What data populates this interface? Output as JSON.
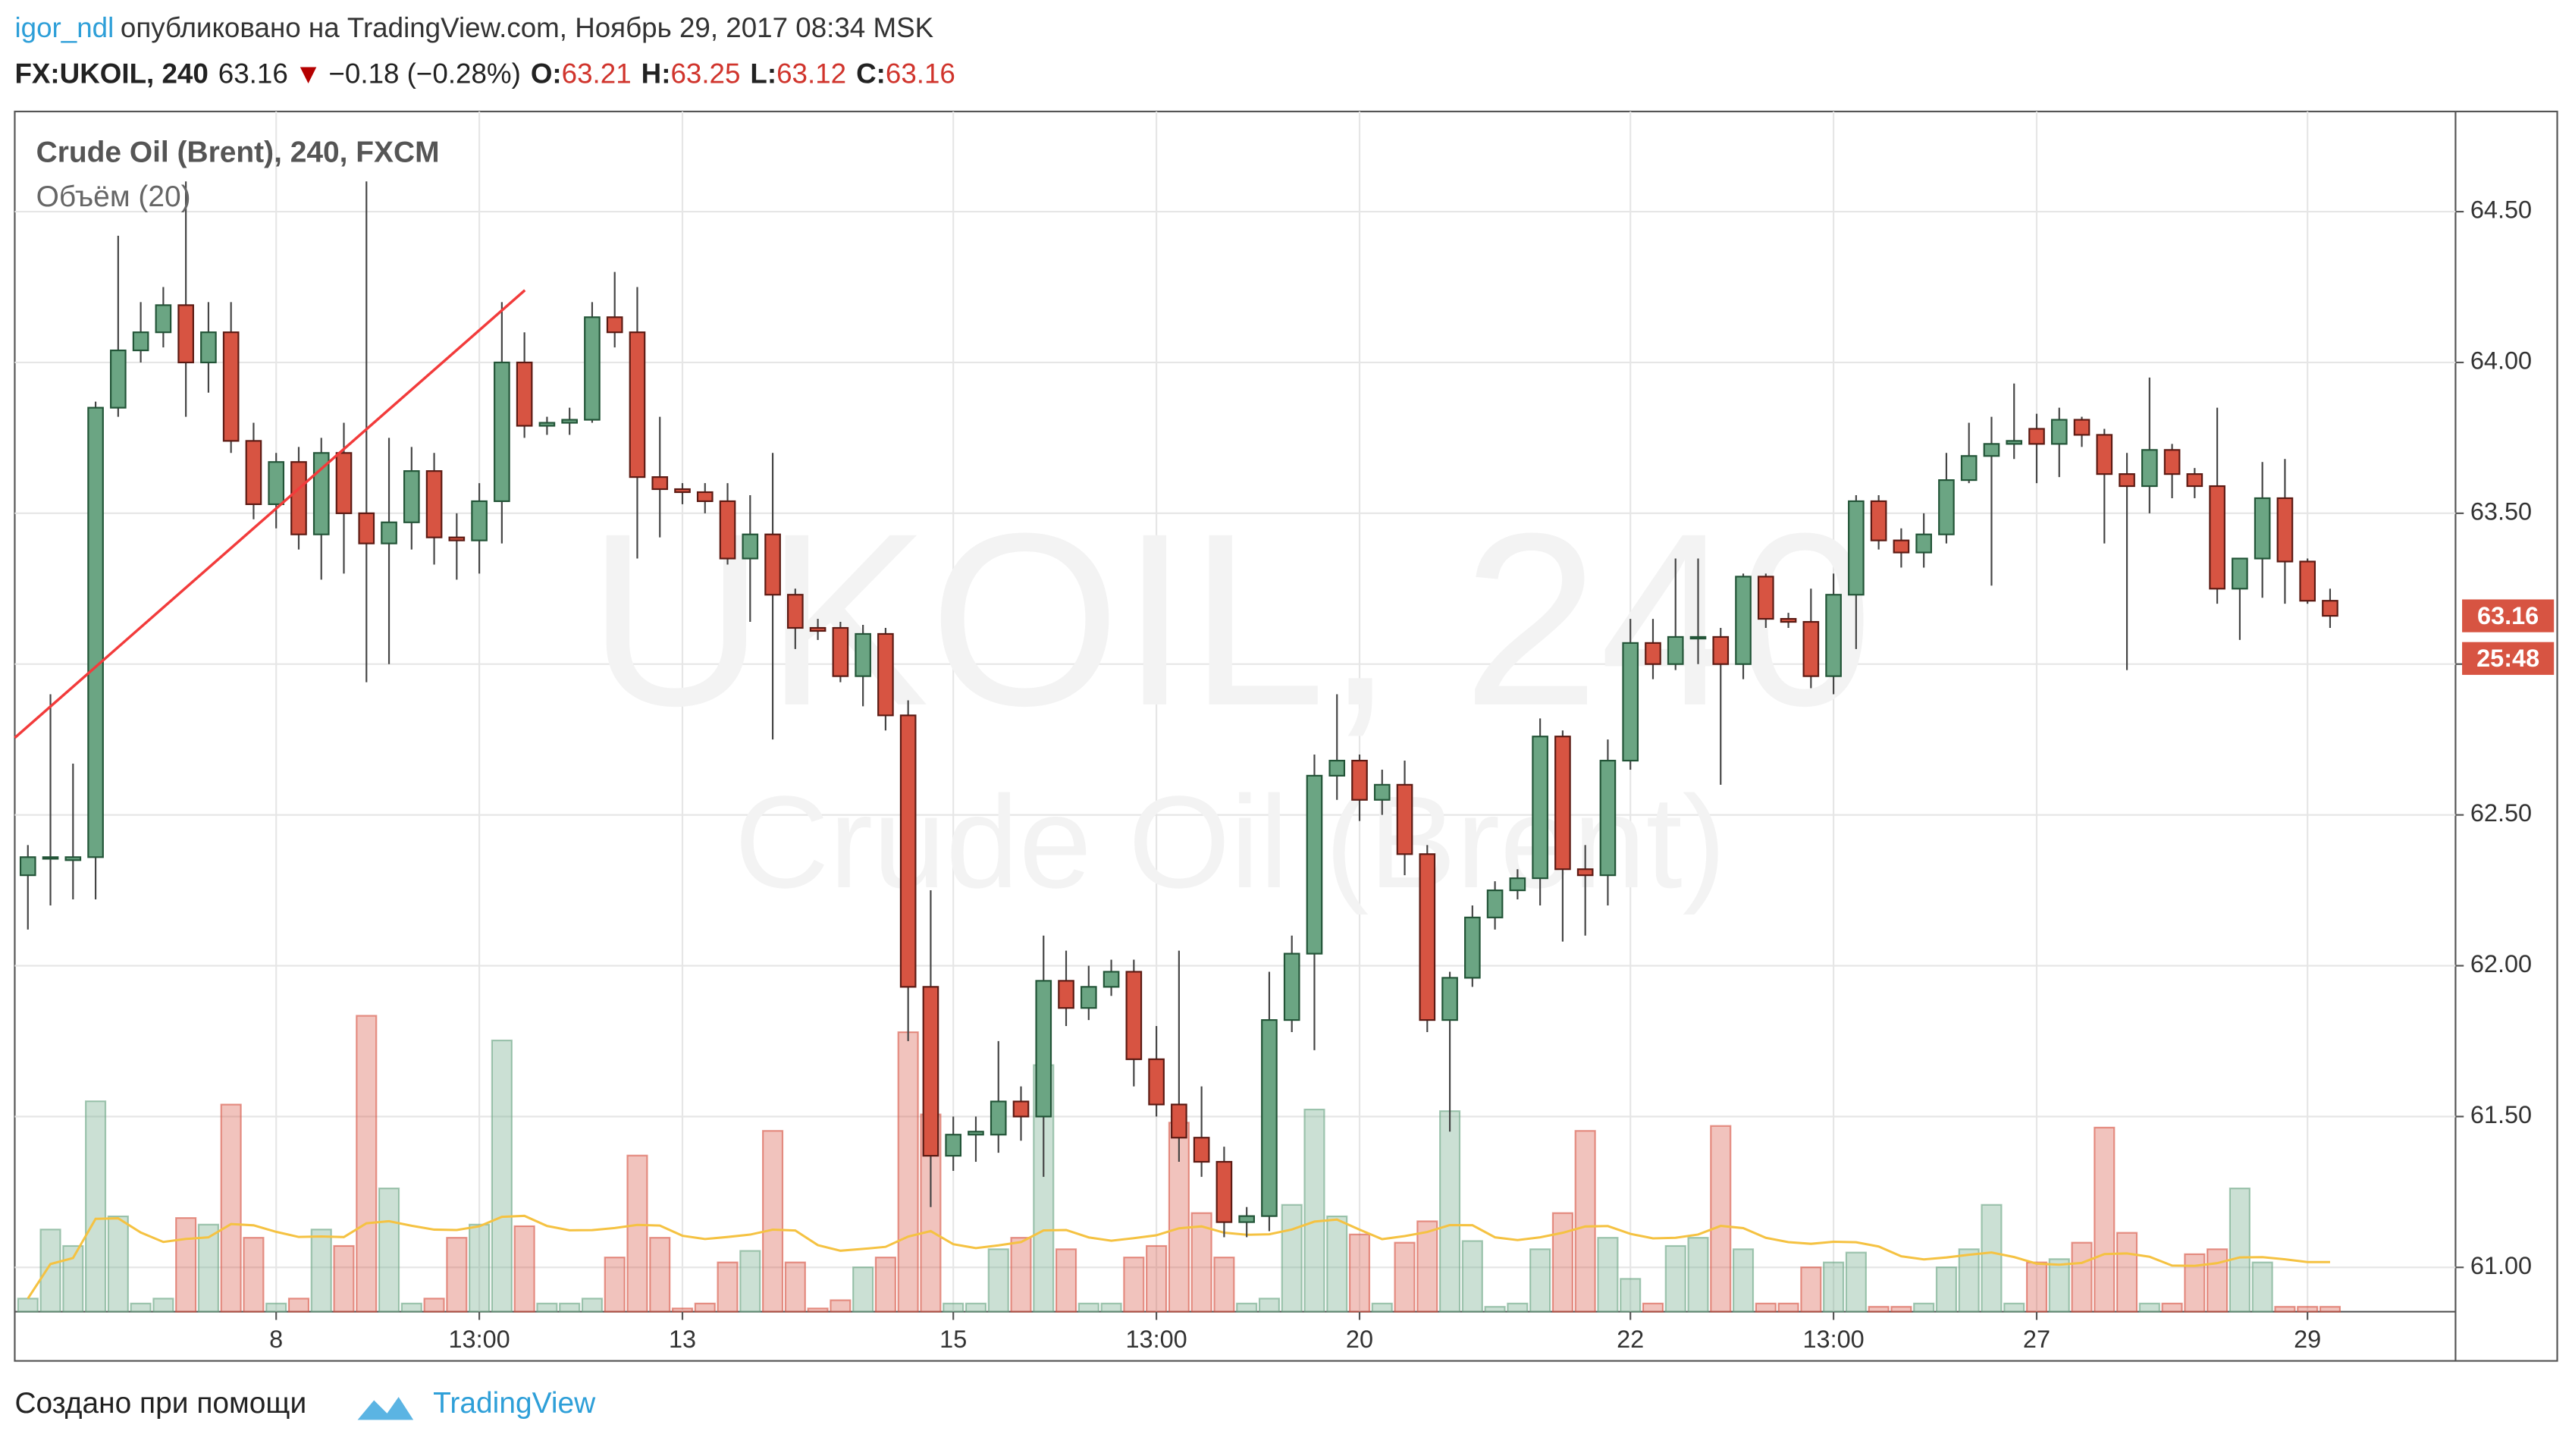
{
  "header": {
    "user": "igor_ndl",
    "published": "опубликовано на TradingView.com, Ноябрь 29, 2017 08:34 MSK",
    "symbol": "FX:UKOIL, 240",
    "last": "63.16",
    "arrow": "▼",
    "change": "−0.18 (−0.28%)",
    "ohlc": [
      {
        "label": "O:",
        "value": "63.21"
      },
      {
        "label": "H:",
        "value": "63.25"
      },
      {
        "label": "L:",
        "value": "63.12"
      },
      {
        "label": "C:",
        "value": "63.16"
      }
    ]
  },
  "footer": {
    "text": "Создано при помощи",
    "brand": "TradingView"
  },
  "chart_data": {
    "type": "candlestick",
    "title": "Crude Oil (Brent), 240, FXCM",
    "subtitle": "Объём (20)",
    "watermark": [
      "UKOIL, 240",
      "Crude Oil (Brent)"
    ],
    "price_label": "63.16",
    "countdown": "25:48",
    "up_color": "#6ba583",
    "down_color": "#d75442",
    "categories": [
      null,
      null,
      null,
      null,
      null,
      null,
      null,
      null,
      null,
      null,
      null,
      "8",
      null,
      null,
      null,
      null,
      null,
      null,
      null,
      null,
      "13:00",
      null,
      null,
      null,
      null,
      null,
      null,
      null,
      null,
      "13",
      null,
      null,
      null,
      null,
      null,
      null,
      null,
      null,
      null,
      null,
      null,
      "15",
      null,
      null,
      null,
      null,
      null,
      null,
      null,
      null,
      "13:00",
      null,
      null,
      null,
      null,
      null,
      null,
      null,
      null,
      "20",
      null,
      null,
      null,
      null,
      null,
      null,
      null,
      null,
      null,
      null,
      null,
      "22",
      null,
      null,
      null,
      null,
      null,
      null,
      null,
      null,
      "13:00",
      null,
      null,
      null,
      null,
      null,
      null,
      null,
      null,
      "27",
      null,
      null,
      null,
      null,
      null,
      null,
      null,
      null,
      null,
      null,
      null,
      "29",
      null
    ],
    "open": [
      62.3,
      62.36,
      62.35,
      62.36,
      63.85,
      64.04,
      64.1,
      64.19,
      64.0,
      64.1,
      63.74,
      63.53,
      63.67,
      63.43,
      63.7,
      63.5,
      63.4,
      63.47,
      63.64,
      63.42,
      63.41,
      63.54,
      64.0,
      63.79,
      63.8,
      63.81,
      64.15,
      64.1,
      63.62,
      63.58,
      63.57,
      63.54,
      63.35,
      63.43,
      63.23,
      63.12,
      63.12,
      62.96,
      63.1,
      62.83,
      61.93,
      61.37,
      61.44,
      61.44,
      61.55,
      61.5,
      61.95,
      61.86,
      61.93,
      61.98,
      61.69,
      61.54,
      61.43,
      61.35,
      61.15,
      61.17,
      61.82,
      62.04,
      62.63,
      62.68,
      62.55,
      62.6,
      62.37,
      61.82,
      61.96,
      62.16,
      62.25,
      62.29,
      62.76,
      62.32,
      62.3,
      62.68,
      63.07,
      63.0,
      63.09,
      63.09,
      63.0,
      63.29,
      63.15,
      63.14,
      62.96,
      63.23,
      63.54,
      63.41,
      63.37,
      63.43,
      63.61,
      63.69,
      63.73,
      63.78,
      63.73,
      63.81,
      63.76,
      63.63,
      63.59,
      63.71,
      63.63,
      63.59,
      63.25,
      63.35,
      63.55,
      63.34,
      63.21
    ],
    "high": [
      62.4,
      62.9,
      62.67,
      63.87,
      64.42,
      64.2,
      64.25,
      64.6,
      64.2,
      64.2,
      63.8,
      63.7,
      63.72,
      63.75,
      63.8,
      64.6,
      63.75,
      63.72,
      63.7,
      63.5,
      63.6,
      64.2,
      64.1,
      63.82,
      63.85,
      64.2,
      64.3,
      64.25,
      63.82,
      63.6,
      63.6,
      63.6,
      63.56,
      63.7,
      63.25,
      63.15,
      63.14,
      63.13,
      63.12,
      62.88,
      62.25,
      61.5,
      61.5,
      61.75,
      61.6,
      62.1,
      62.05,
      62.0,
      62.02,
      62.02,
      61.8,
      62.05,
      61.6,
      61.4,
      61.2,
      61.98,
      62.1,
      62.7,
      62.9,
      62.7,
      62.65,
      62.68,
      62.4,
      61.98,
      62.2,
      62.28,
      62.32,
      62.82,
      62.78,
      62.4,
      62.75,
      63.15,
      63.15,
      63.35,
      63.35,
      63.12,
      63.3,
      63.3,
      63.17,
      63.25,
      63.3,
      63.56,
      63.56,
      63.45,
      63.5,
      63.7,
      63.8,
      63.82,
      63.93,
      63.83,
      63.85,
      63.82,
      63.78,
      63.7,
      63.95,
      63.73,
      63.65,
      63.85,
      63.35,
      63.67,
      63.68,
      63.35,
      63.25
    ],
    "low": [
      62.12,
      62.2,
      62.22,
      62.22,
      63.82,
      64.0,
      64.05,
      63.82,
      63.9,
      63.7,
      63.48,
      63.45,
      63.38,
      63.28,
      63.3,
      62.94,
      63.0,
      63.38,
      63.33,
      63.28,
      63.3,
      63.4,
      63.75,
      63.76,
      63.76,
      63.8,
      64.05,
      63.35,
      63.42,
      63.53,
      63.5,
      63.33,
      63.14,
      62.75,
      63.05,
      63.08,
      62.94,
      62.86,
      62.78,
      61.75,
      61.2,
      61.32,
      61.35,
      61.38,
      61.42,
      61.3,
      61.8,
      61.82,
      61.9,
      61.6,
      61.5,
      61.35,
      61.3,
      61.1,
      61.1,
      61.12,
      61.78,
      61.72,
      62.55,
      62.48,
      62.5,
      62.3,
      61.78,
      61.45,
      61.93,
      62.12,
      62.22,
      62.2,
      62.08,
      62.1,
      62.2,
      62.65,
      62.95,
      62.98,
      63.0,
      62.6,
      62.95,
      63.12,
      63.12,
      62.92,
      62.9,
      63.05,
      63.38,
      63.32,
      63.32,
      63.4,
      63.6,
      63.26,
      63.68,
      63.6,
      63.62,
      63.72,
      63.4,
      62.98,
      63.5,
      63.55,
      63.55,
      63.2,
      63.08,
      63.22,
      63.2,
      63.2,
      63.12
    ],
    "close": [
      62.36,
      62.36,
      62.36,
      63.85,
      64.04,
      64.1,
      64.19,
      64.0,
      64.1,
      63.74,
      63.53,
      63.67,
      63.43,
      63.7,
      63.5,
      63.4,
      63.47,
      63.64,
      63.42,
      63.41,
      63.54,
      64.0,
      63.79,
      63.8,
      63.81,
      64.15,
      64.1,
      63.62,
      63.58,
      63.57,
      63.54,
      63.35,
      63.43,
      63.23,
      63.12,
      63.11,
      62.96,
      63.1,
      62.83,
      61.93,
      61.37,
      61.44,
      61.45,
      61.55,
      61.5,
      61.95,
      61.86,
      61.93,
      61.98,
      61.69,
      61.54,
      61.43,
      61.35,
      61.15,
      61.17,
      61.82,
      62.04,
      62.63,
      62.68,
      62.55,
      62.6,
      62.37,
      61.82,
      61.96,
      62.16,
      62.25,
      62.29,
      62.76,
      62.32,
      62.3,
      62.68,
      63.07,
      63.0,
      63.09,
      63.09,
      63.0,
      63.29,
      63.15,
      63.14,
      62.96,
      63.23,
      63.54,
      63.41,
      63.37,
      63.43,
      63.61,
      63.69,
      63.73,
      63.74,
      63.73,
      63.81,
      63.76,
      63.63,
      63.59,
      63.71,
      63.63,
      63.59,
      63.25,
      63.35,
      63.55,
      63.34,
      63.21,
      63.16
    ],
    "volume": [
      8,
      50,
      40,
      128,
      58,
      5,
      8,
      57,
      53,
      126,
      45,
      5,
      8,
      50,
      40,
      180,
      75,
      5,
      8,
      45,
      53,
      165,
      52,
      5,
      5,
      8,
      33,
      95,
      45,
      2,
      5,
      30,
      37,
      110,
      30,
      2,
      7,
      27,
      33,
      170,
      120,
      5,
      5,
      38,
      45,
      150,
      38,
      5,
      5,
      33,
      40,
      115,
      60,
      33,
      5,
      8,
      65,
      123,
      58,
      47,
      5,
      42,
      55,
      122,
      43,
      3,
      5,
      38,
      60,
      110,
      45,
      20,
      5,
      40,
      45,
      113,
      38,
      5,
      5,
      27,
      30,
      36,
      3,
      3,
      5,
      27,
      38,
      65,
      5,
      30,
      32,
      42,
      112,
      48,
      5,
      5,
      35,
      38,
      75,
      30,
      3,
      3,
      3
    ],
    "ylim": [
      60.853,
      64.832
    ],
    "yticks": [
      {
        "value": 61,
        "label": "61.00"
      },
      {
        "value": 61.5,
        "label": "61.50"
      },
      {
        "value": 62,
        "label": "62.00"
      },
      {
        "value": 62.5,
        "label": "62.50"
      },
      {
        "value": 63,
        "label": "63.00"
      },
      {
        "value": 63.5,
        "label": "63.50"
      },
      {
        "value": 64,
        "label": "64.00"
      },
      {
        "value": 64.5,
        "label": "64.50"
      }
    ],
    "y2lim": [
      0,
      730
    ],
    "grid": true
  }
}
